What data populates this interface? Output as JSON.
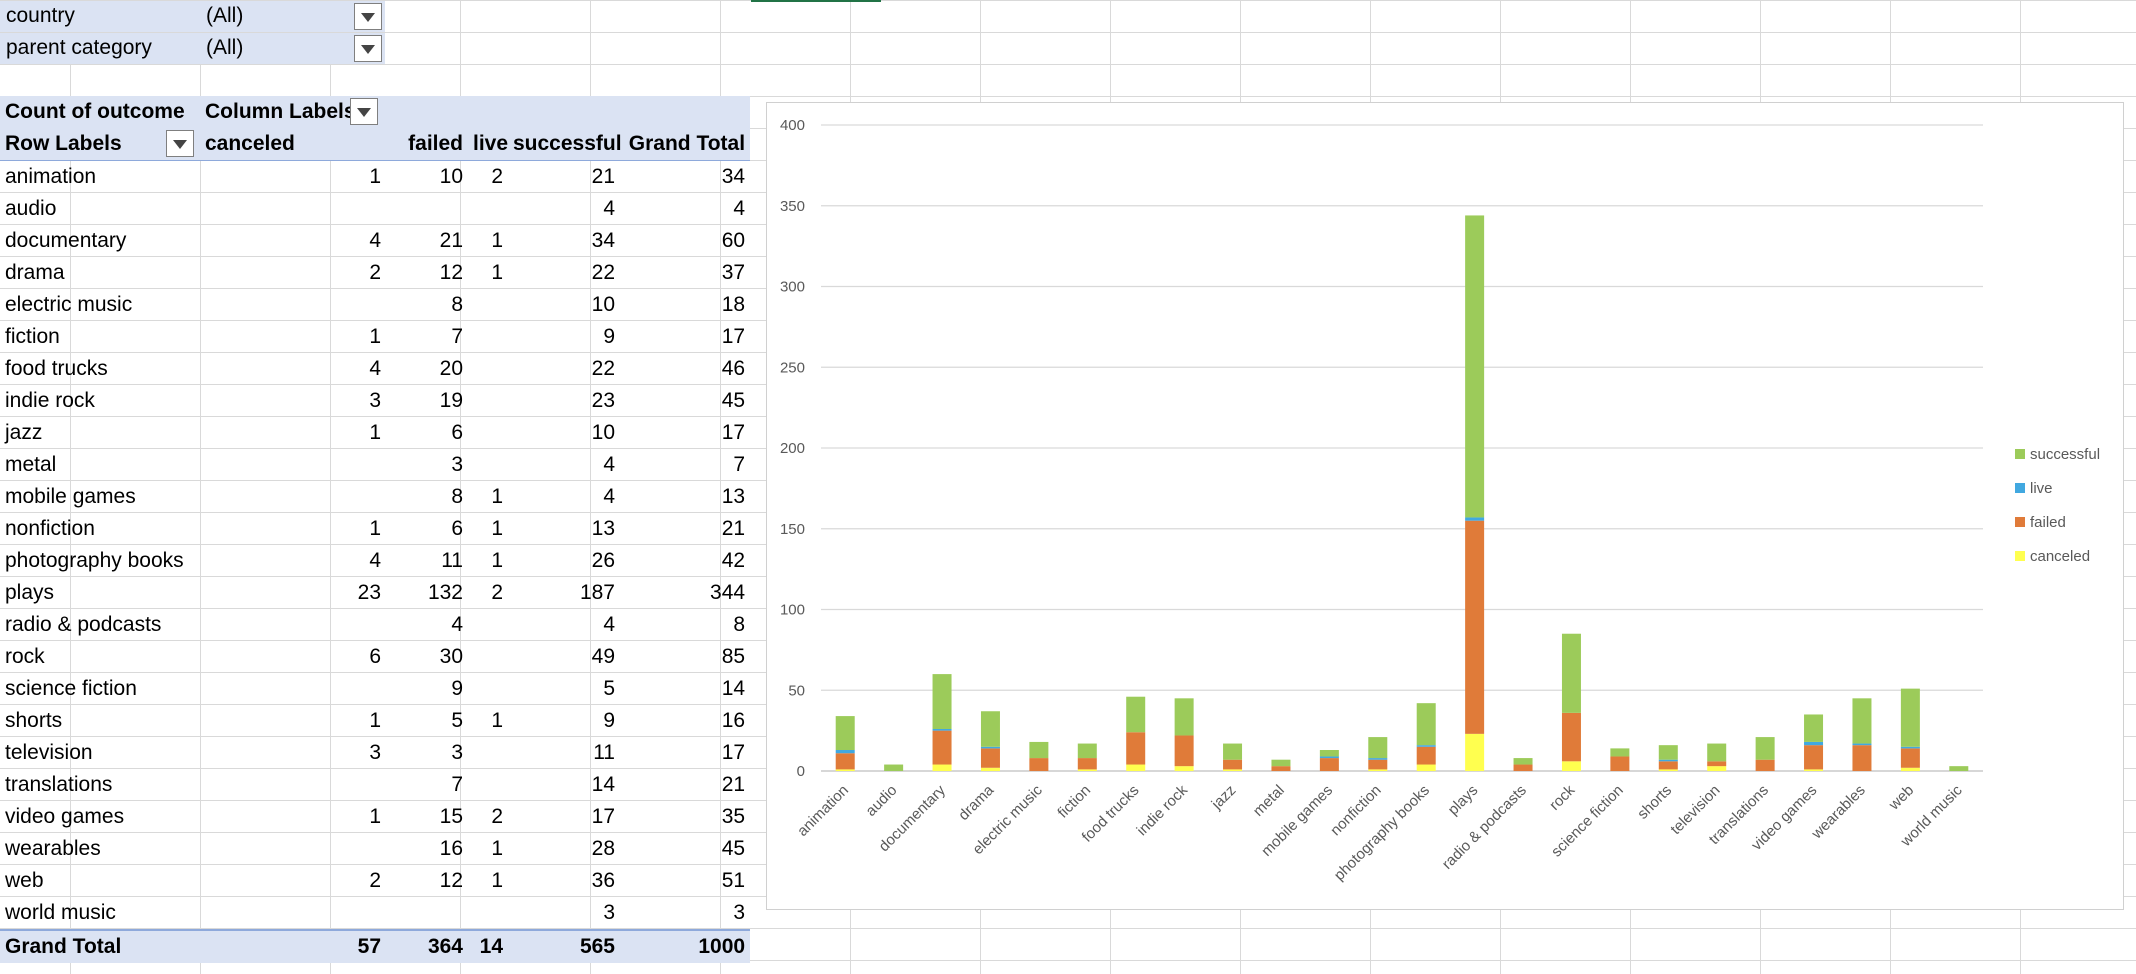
{
  "filters": [
    {
      "label": "country",
      "value": "(All)"
    },
    {
      "label": "parent category",
      "value": "(All)"
    }
  ],
  "pivot": {
    "value_header": "Count of outcome",
    "column_labels_header": "Column Labels",
    "row_labels_header": "Row Labels",
    "columns": [
      "canceled",
      "failed",
      "live",
      "successful",
      "Grand Total"
    ],
    "rows": [
      {
        "label": "animation",
        "values": [
          "1",
          "10",
          "2",
          "21",
          "34"
        ]
      },
      {
        "label": "audio",
        "values": [
          "",
          "",
          "",
          "4",
          "4"
        ]
      },
      {
        "label": "documentary",
        "values": [
          "4",
          "21",
          "1",
          "34",
          "60"
        ]
      },
      {
        "label": "drama",
        "values": [
          "2",
          "12",
          "1",
          "22",
          "37"
        ]
      },
      {
        "label": "electric music",
        "values": [
          "",
          "8",
          "",
          "10",
          "18"
        ]
      },
      {
        "label": "fiction",
        "values": [
          "1",
          "7",
          "",
          "9",
          "17"
        ]
      },
      {
        "label": "food trucks",
        "values": [
          "4",
          "20",
          "",
          "22",
          "46"
        ]
      },
      {
        "label": "indie rock",
        "values": [
          "3",
          "19",
          "",
          "23",
          "45"
        ]
      },
      {
        "label": "jazz",
        "values": [
          "1",
          "6",
          "",
          "10",
          "17"
        ]
      },
      {
        "label": "metal",
        "values": [
          "",
          "3",
          "",
          "4",
          "7"
        ]
      },
      {
        "label": "mobile games",
        "values": [
          "",
          "8",
          "1",
          "4",
          "13"
        ]
      },
      {
        "label": "nonfiction",
        "values": [
          "1",
          "6",
          "1",
          "13",
          "21"
        ]
      },
      {
        "label": "photography books",
        "values": [
          "4",
          "11",
          "1",
          "26",
          "42"
        ]
      },
      {
        "label": "plays",
        "values": [
          "23",
          "132",
          "2",
          "187",
          "344"
        ]
      },
      {
        "label": "radio & podcasts",
        "values": [
          "",
          "4",
          "",
          "4",
          "8"
        ]
      },
      {
        "label": "rock",
        "values": [
          "6",
          "30",
          "",
          "49",
          "85"
        ]
      },
      {
        "label": "science fiction",
        "values": [
          "",
          "9",
          "",
          "5",
          "14"
        ]
      },
      {
        "label": "shorts",
        "values": [
          "1",
          "5",
          "1",
          "9",
          "16"
        ]
      },
      {
        "label": "television",
        "values": [
          "3",
          "3",
          "",
          "11",
          "17"
        ]
      },
      {
        "label": "translations",
        "values": [
          "",
          "7",
          "",
          "14",
          "21"
        ]
      },
      {
        "label": "video games",
        "values": [
          "1",
          "15",
          "2",
          "17",
          "35"
        ]
      },
      {
        "label": "wearables",
        "values": [
          "",
          "16",
          "1",
          "28",
          "45"
        ]
      },
      {
        "label": "web",
        "values": [
          "2",
          "12",
          "1",
          "36",
          "51"
        ]
      },
      {
        "label": "world music",
        "values": [
          "",
          "",
          "",
          "3",
          "3"
        ]
      }
    ],
    "grand_total": {
      "label": "Grand Total",
      "values": [
        "57",
        "364",
        "14",
        "565",
        "1000"
      ]
    }
  },
  "chart_data": {
    "type": "bar",
    "stacked": true,
    "categories": [
      "animation",
      "audio",
      "documentary",
      "drama",
      "electric music",
      "fiction",
      "food trucks",
      "indie rock",
      "jazz",
      "metal",
      "mobile games",
      "nonfiction",
      "photography books",
      "plays",
      "radio & podcasts",
      "rock",
      "science fiction",
      "shorts",
      "television",
      "translations",
      "video games",
      "wearables",
      "web",
      "world music"
    ],
    "series": [
      {
        "name": "canceled",
        "color": "#ffff4f",
        "values": [
          1,
          0,
          4,
          2,
          0,
          1,
          4,
          3,
          1,
          0,
          0,
          1,
          4,
          23,
          0,
          6,
          0,
          1,
          3,
          0,
          1,
          0,
          2,
          0
        ]
      },
      {
        "name": "failed",
        "color": "#e07b39",
        "values": [
          10,
          0,
          21,
          12,
          8,
          7,
          20,
          19,
          6,
          3,
          8,
          6,
          11,
          132,
          4,
          30,
          9,
          5,
          3,
          7,
          15,
          16,
          12,
          0
        ]
      },
      {
        "name": "live",
        "color": "#41a8e0",
        "values": [
          2,
          0,
          1,
          1,
          0,
          0,
          0,
          0,
          0,
          0,
          1,
          1,
          1,
          2,
          0,
          0,
          0,
          1,
          0,
          0,
          2,
          1,
          1,
          0
        ]
      },
      {
        "name": "successful",
        "color": "#9ccb5a",
        "values": [
          21,
          4,
          34,
          22,
          10,
          9,
          22,
          23,
          10,
          4,
          4,
          13,
          26,
          187,
          4,
          49,
          5,
          9,
          11,
          14,
          17,
          28,
          36,
          3
        ]
      }
    ],
    "yticks": [
      "0",
      "50",
      "100",
      "150",
      "200",
      "250",
      "300",
      "350",
      "400"
    ],
    "ylim": [
      0,
      400
    ],
    "grid": true,
    "legend_position": "right",
    "legend_order": [
      "successful",
      "live",
      "failed",
      "canceled"
    ]
  }
}
